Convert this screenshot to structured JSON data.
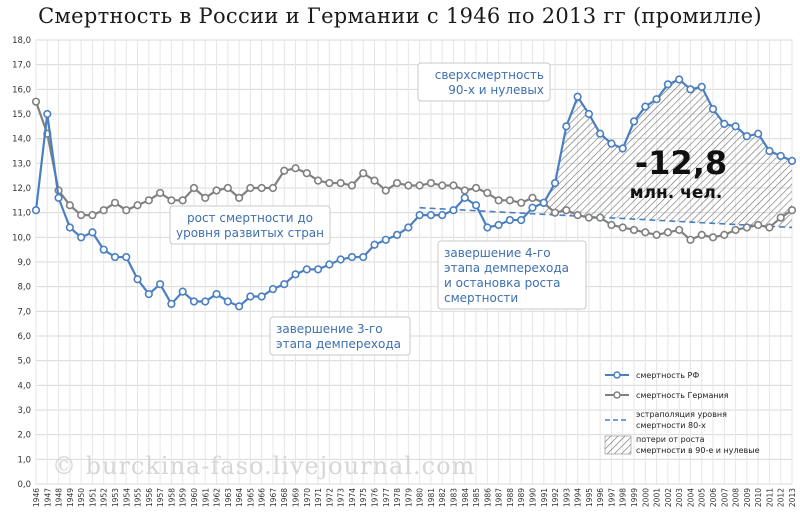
{
  "chart_data": {
    "type": "line",
    "title": "Смертность в России и Германии с 1946 по 2013 гг (промилле)",
    "ylim": [
      0,
      18
    ],
    "y_ticks": [
      "0,0",
      "1,0",
      "2,0",
      "3,0",
      "4,0",
      "5,0",
      "6,0",
      "7,0",
      "8,0",
      "9,0",
      "10,0",
      "11,0",
      "12,0",
      "13,0",
      "14,0",
      "15,0",
      "16,0",
      "17,0",
      "18,0"
    ],
    "grid": true,
    "x": [
      1946,
      1947,
      1948,
      1949,
      1950,
      1951,
      1952,
      1953,
      1954,
      1955,
      1956,
      1957,
      1958,
      1959,
      1960,
      1961,
      1962,
      1963,
      1964,
      1965,
      1966,
      1967,
      1968,
      1969,
      1970,
      1971,
      1972,
      1973,
      1974,
      1975,
      1976,
      1977,
      1978,
      1979,
      1980,
      1981,
      1982,
      1983,
      1984,
      1985,
      1986,
      1987,
      1988,
      1989,
      1990,
      1991,
      1992,
      1993,
      1994,
      1995,
      1996,
      1997,
      1998,
      1999,
      2000,
      2001,
      2002,
      2003,
      2004,
      2005,
      2006,
      2007,
      2008,
      2009,
      2010,
      2011,
      2012,
      2013
    ],
    "series": [
      {
        "name": "смертность РФ",
        "color": "#4a7fc1",
        "values": [
          11.1,
          15.0,
          11.6,
          10.4,
          10.0,
          10.2,
          9.5,
          9.2,
          9.2,
          8.3,
          7.7,
          8.1,
          7.3,
          7.8,
          7.4,
          7.4,
          7.7,
          7.4,
          7.2,
          7.6,
          7.6,
          7.9,
          8.1,
          8.5,
          8.7,
          8.7,
          8.9,
          9.1,
          9.2,
          9.2,
          9.7,
          9.9,
          10.1,
          10.4,
          10.9,
          10.9,
          10.9,
          11.1,
          11.6,
          11.3,
          10.4,
          10.5,
          10.7,
          10.7,
          11.2,
          11.4,
          12.2,
          14.5,
          15.7,
          15.0,
          14.2,
          13.8,
          13.6,
          14.7,
          15.3,
          15.6,
          16.2,
          16.4,
          16.0,
          16.1,
          15.2,
          14.6,
          14.5,
          14.1,
          14.2,
          13.5,
          13.3,
          13.1
        ]
      },
      {
        "name": "смертность Германия",
        "color": "#808080",
        "values": [
          15.5,
          14.2,
          11.9,
          11.3,
          10.9,
          10.9,
          11.1,
          11.4,
          11.1,
          11.3,
          11.5,
          11.8,
          11.5,
          11.5,
          12.0,
          11.6,
          11.9,
          12.0,
          11.6,
          12.0,
          12.0,
          12.0,
          12.7,
          12.8,
          12.6,
          12.3,
          12.2,
          12.2,
          12.1,
          12.6,
          12.3,
          11.9,
          12.2,
          12.1,
          12.1,
          12.2,
          12.1,
          12.1,
          11.9,
          12.0,
          11.8,
          11.5,
          11.5,
          11.4,
          11.6,
          11.4,
          11.0,
          11.1,
          10.9,
          10.8,
          10.8,
          10.5,
          10.4,
          10.3,
          10.2,
          10.1,
          10.2,
          10.3,
          9.9,
          10.1,
          10.0,
          10.1,
          10.3,
          10.4,
          10.5,
          10.4,
          10.8,
          11.1
        ]
      },
      {
        "name": "эстраполяция уровня смертности 80-х",
        "color": "#4a7fc1",
        "dashed": true,
        "x_range": [
          1980,
          2013
        ],
        "values_range": [
          11.2,
          10.4
        ]
      }
    ],
    "area_fill": {
      "name": "потери от роста смертности в 90-е и нулевые",
      "from_year": 1991,
      "to_year": 2013
    },
    "legend": {
      "position": "bottom-right",
      "items": [
        "смертность РФ",
        "смертность Германия",
        "эстраполяция уровня смертности 80-х",
        "потери от роста смертности в 90-е и нулевые"
      ]
    },
    "annotations": {
      "big_value": "-12,8",
      "big_unit": "млн. чел.",
      "box_superexcess": [
        "сверхсмертность",
        "90-х и нулевых"
      ],
      "box_rise": [
        "рост смертности до",
        "уровня развитых стран"
      ],
      "box_stage4": [
        "завершение 4-го",
        "этапа демперехода",
        "и остановка роста",
        "смертности"
      ],
      "box_stage3": [
        "завершение 3-го",
        "этапа демперехода"
      ]
    }
  },
  "watermark": "© burckina-faso.livejournal.com"
}
